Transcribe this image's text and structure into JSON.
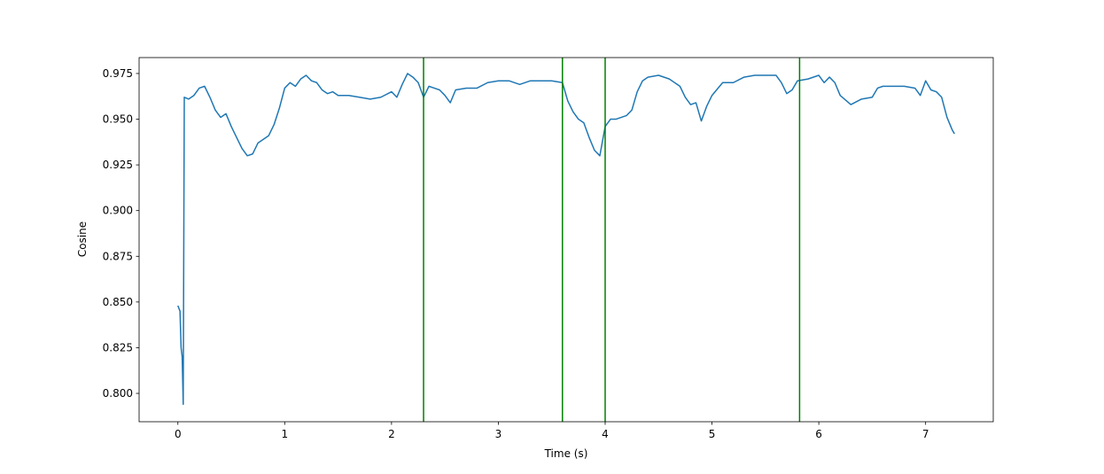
{
  "chart_data": {
    "type": "line",
    "xlabel": "Time (s)",
    "ylabel": "Cosine",
    "x": [
      0,
      0.02,
      0.03,
      0.04,
      0.05,
      0.06,
      0.1,
      0.15,
      0.2,
      0.25,
      0.3,
      0.35,
      0.4,
      0.45,
      0.5,
      0.55,
      0.6,
      0.65,
      0.7,
      0.75,
      0.8,
      0.85,
      0.9,
      0.95,
      1.0,
      1.05,
      1.1,
      1.15,
      1.2,
      1.25,
      1.3,
      1.35,
      1.4,
      1.45,
      1.5,
      1.6,
      1.7,
      1.8,
      1.9,
      2.0,
      2.05,
      2.1,
      2.15,
      2.2,
      2.25,
      2.3,
      2.35,
      2.4,
      2.45,
      2.5,
      2.55,
      2.6,
      2.7,
      2.8,
      2.9,
      3.0,
      3.1,
      3.2,
      3.3,
      3.4,
      3.5,
      3.6,
      3.65,
      3.7,
      3.75,
      3.8,
      3.85,
      3.9,
      3.95,
      4.0,
      4.05,
      4.1,
      4.2,
      4.25,
      4.3,
      4.35,
      4.4,
      4.5,
      4.6,
      4.7,
      4.75,
      4.8,
      4.85,
      4.9,
      4.95,
      5.0,
      5.1,
      5.2,
      5.3,
      5.4,
      5.5,
      5.6,
      5.65,
      5.7,
      5.75,
      5.8,
      5.9,
      6.0,
      6.05,
      6.1,
      6.15,
      6.2,
      6.3,
      6.4,
      6.5,
      6.55,
      6.6,
      6.7,
      6.8,
      6.9,
      6.95,
      7.0,
      7.05,
      7.1,
      7.15,
      7.2,
      7.25,
      7.27
    ],
    "values": [
      0.848,
      0.845,
      0.825,
      0.82,
      0.794,
      0.962,
      0.961,
      0.963,
      0.967,
      0.968,
      0.962,
      0.955,
      0.951,
      0.953,
      0.946,
      0.94,
      0.934,
      0.93,
      0.931,
      0.937,
      0.939,
      0.941,
      0.947,
      0.956,
      0.967,
      0.97,
      0.968,
      0.972,
      0.974,
      0.971,
      0.97,
      0.966,
      0.964,
      0.965,
      0.963,
      0.963,
      0.962,
      0.961,
      0.962,
      0.965,
      0.962,
      0.969,
      0.975,
      0.973,
      0.97,
      0.962,
      0.968,
      0.967,
      0.966,
      0.963,
      0.959,
      0.966,
      0.967,
      0.967,
      0.97,
      0.971,
      0.971,
      0.969,
      0.971,
      0.971,
      0.971,
      0.97,
      0.96,
      0.954,
      0.95,
      0.948,
      0.94,
      0.933,
      0.93,
      0.946,
      0.95,
      0.95,
      0.952,
      0.955,
      0.965,
      0.971,
      0.973,
      0.974,
      0.972,
      0.968,
      0.962,
      0.958,
      0.959,
      0.949,
      0.957,
      0.963,
      0.97,
      0.97,
      0.973,
      0.974,
      0.974,
      0.974,
      0.97,
      0.964,
      0.966,
      0.971,
      0.972,
      0.974,
      0.97,
      0.973,
      0.97,
      0.963,
      0.958,
      0.961,
      0.962,
      0.967,
      0.968,
      0.968,
      0.968,
      0.967,
      0.963,
      0.971,
      0.966,
      0.965,
      0.962,
      0.951,
      0.944,
      0.942
    ],
    "color": "#1f77b4",
    "vlines": [
      2.3,
      3.6,
      4.0,
      5.82
    ],
    "vline_color": "#008000",
    "xlim": [
      -0.363,
      7.633
    ],
    "xticks": [
      0,
      1,
      2,
      3,
      4,
      5,
      6,
      7
    ],
    "ylim": [
      0.7845,
      0.9837
    ],
    "yticks": [
      {
        "value": 0.8,
        "label": "0.800"
      },
      0.825,
      {
        "value": 0.85,
        "label": "0.850"
      },
      0.875,
      {
        "value": 0.9,
        "label": "0.900"
      },
      0.925,
      {
        "value": 0.95,
        "label": "0.950"
      },
      0.975
    ]
  }
}
